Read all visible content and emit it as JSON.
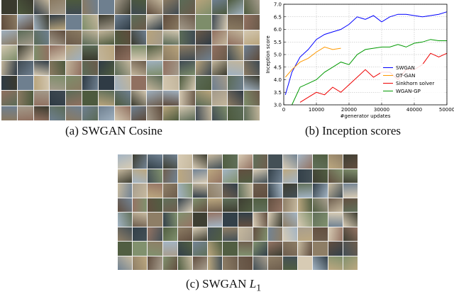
{
  "captions": {
    "a": "(a)  SWGAN Cosine",
    "b": "(b)  Inception scores",
    "c_prefix": "(c)  SWGAN ",
    "c_math": "L",
    "c_sub": "1"
  },
  "sample_grids": {
    "a": {
      "rows": 8,
      "cols": 16,
      "palette": [
        "#5b6b57",
        "#8a7a62",
        "#3f4a52",
        "#a39a8a",
        "#6e7f8f",
        "#c2b59b",
        "#4d5a3e",
        "#907060",
        "#2f3b45",
        "#b8a47c",
        "#7d8d6a",
        "#5e4b3c",
        "#9fb0bf",
        "#d3c7b0",
        "#3a3a2e",
        "#6a5a4a"
      ]
    },
    "c": {
      "rows": 8,
      "cols": 16,
      "palette": [
        "#61705a",
        "#8e7e66",
        "#445056",
        "#a89e8e",
        "#728393",
        "#c6b99f",
        "#515e42",
        "#947464",
        "#334049",
        "#bca880",
        "#81916e",
        "#624f40",
        "#a3b4c3",
        "#d7cbb4",
        "#3e3e32",
        "#6e5e4e"
      ]
    }
  },
  "chart_data": {
    "type": "line",
    "title": "",
    "xlabel": "#generator updates",
    "ylabel": "Inception score",
    "xlim": [
      0,
      50000
    ],
    "ylim": [
      3.0,
      7.0
    ],
    "xticks": [
      0,
      10000,
      20000,
      30000,
      40000,
      50000
    ],
    "yticks": [
      3.0,
      3.5,
      4.0,
      4.5,
      5.0,
      5.5,
      6.0,
      6.5,
      7.0
    ],
    "grid": true,
    "legend_position": "bottom-right",
    "series": [
      {
        "name": "SWGAN",
        "color": "#0000ff",
        "x": [
          500,
          2500,
          5000,
          7500,
          10000,
          12500,
          15000,
          17500,
          20000,
          22500,
          25000,
          27500,
          30000,
          32500,
          35000,
          37500,
          40000,
          42500,
          45000,
          47500,
          50000
        ],
        "y": [
          3.4,
          4.3,
          4.9,
          5.2,
          5.6,
          5.8,
          5.9,
          6.0,
          6.2,
          6.5,
          6.4,
          6.55,
          6.3,
          6.5,
          6.6,
          6.6,
          6.55,
          6.5,
          6.55,
          6.6,
          6.7
        ]
      },
      {
        "name": "OT-GAN",
        "color": "#ff9900",
        "x": [
          500,
          2500,
          5000,
          7500,
          10000,
          12500,
          15000,
          17500
        ],
        "y": [
          4.1,
          4.4,
          4.7,
          4.85,
          5.1,
          5.3,
          5.2,
          5.25
        ]
      },
      {
        "name": "Sinkhorn solver",
        "color": "#ee0000",
        "x": [
          5000,
          7500,
          10000,
          12500,
          15000,
          17500,
          20000,
          22500,
          25000,
          27500,
          30000,
          32500,
          35000,
          37500,
          40000,
          42500,
          45000,
          47500,
          50000
        ],
        "y": [
          3.1,
          3.3,
          3.5,
          3.4,
          3.7,
          3.5,
          3.8,
          4.1,
          4.4,
          4.1,
          4.3,
          4.3,
          4.0,
          4.4,
          4.4,
          4.6,
          5.05,
          4.9,
          5.05
        ]
      },
      {
        "name": "WGAN-GP",
        "color": "#009900",
        "x": [
          2500,
          5000,
          7500,
          10000,
          12500,
          15000,
          17500,
          20000,
          22500,
          25000,
          27500,
          30000,
          32500,
          35000,
          37500,
          40000,
          42500,
          45000,
          47500,
          50000
        ],
        "y": [
          3.0,
          3.7,
          3.85,
          4.0,
          4.3,
          4.5,
          4.7,
          4.6,
          5.0,
          5.2,
          5.25,
          5.3,
          5.3,
          5.4,
          5.3,
          5.45,
          5.5,
          5.6,
          5.55,
          5.55
        ]
      }
    ]
  }
}
